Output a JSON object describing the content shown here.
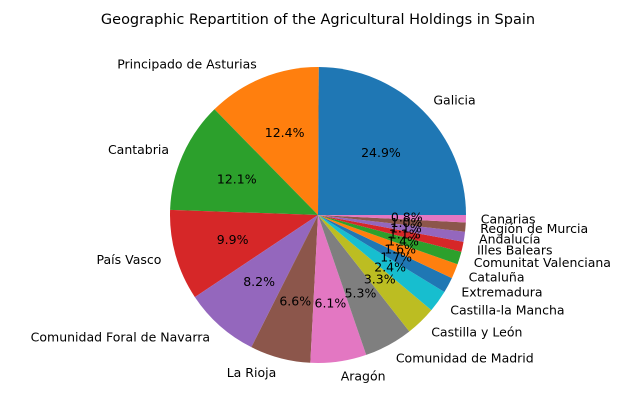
{
  "chart_data": {
    "type": "pie",
    "title": "Geographic Repartition of the Agricultural Holdings in Spain",
    "start_angle": 0,
    "direction": "counterclockwise",
    "slices": [
      {
        "label": "Galicia",
        "value": 24.9,
        "pct_label": "24.9%",
        "color": "#1f77b4"
      },
      {
        "label": "Principado de Asturias",
        "value": 12.4,
        "pct_label": "12.4%",
        "color": "#ff7f0e"
      },
      {
        "label": "Cantabria",
        "value": 12.1,
        "pct_label": "12.1%",
        "color": "#2ca02c"
      },
      {
        "label": "País Vasco",
        "value": 9.9,
        "pct_label": "9.9%",
        "color": "#d62728"
      },
      {
        "label": "Comunidad Foral de Navarra",
        "value": 8.2,
        "pct_label": "8.2%",
        "color": "#9467bd"
      },
      {
        "label": "La Rioja",
        "value": 6.6,
        "pct_label": "6.6%",
        "color": "#8c564b"
      },
      {
        "label": "Aragón",
        "value": 6.1,
        "pct_label": "6.1%",
        "color": "#e377c2"
      },
      {
        "label": "Comunidad de Madrid",
        "value": 5.3,
        "pct_label": "5.3%",
        "color": "#7f7f7f"
      },
      {
        "label": "Castilla y León",
        "value": 3.3,
        "pct_label": "3.3%",
        "color": "#bcbd22"
      },
      {
        "label": "Castilla-la Mancha",
        "value": 2.4,
        "pct_label": "2.4%",
        "color": "#17becf"
      },
      {
        "label": "Extremadura",
        "value": 1.7,
        "pct_label": "1.7%",
        "color": "#1f77b4"
      },
      {
        "label": "Cataluña",
        "value": 1.6,
        "pct_label": "1.6%",
        "color": "#ff7f0e"
      },
      {
        "label": "Comunitat Valenciana",
        "value": 1.4,
        "pct_label": "1.4%",
        "color": "#2ca02c"
      },
      {
        "label": "Illes Balears",
        "value": 1.1,
        "pct_label": "1.1%",
        "color": "#d62728"
      },
      {
        "label": "Andalucía",
        "value": 1.1,
        "pct_label": "1.1%",
        "color": "#9467bd"
      },
      {
        "label": "Región de Murcia",
        "value": 1.0,
        "pct_label": "1.0%",
        "color": "#8c564b"
      },
      {
        "label": "Canarias",
        "value": 0.8,
        "pct_label": "0.8%",
        "color": "#e377c2"
      }
    ]
  }
}
